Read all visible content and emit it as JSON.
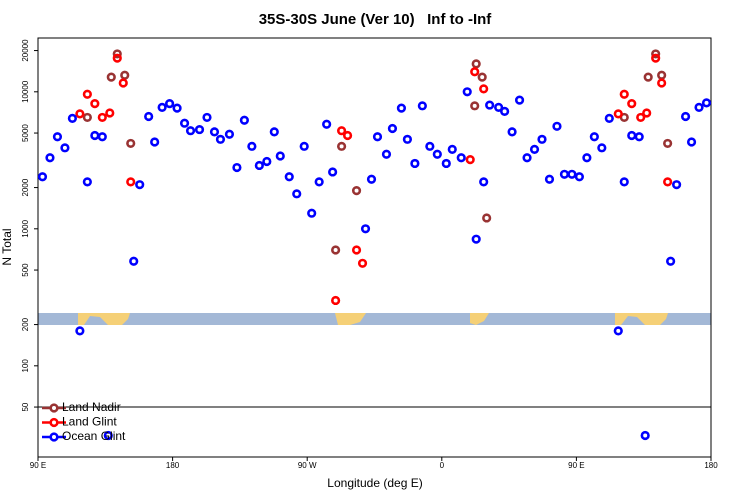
{
  "chart_data": {
    "type": "scatter",
    "title": "35S-30S June (Ver 10)   Inf to -Inf",
    "x_label": "Longitude (deg E)",
    "y_label": "N Total",
    "ylog": true,
    "legend": "bottom-left",
    "reference_line": 50,
    "xlim": [
      90,
      540
    ],
    "xticks": [
      {
        "value": 90,
        "label": "90 E"
      },
      {
        "value": 180,
        "label": "180"
      },
      {
        "value": 270,
        "label": "90 W"
      },
      {
        "value": 360,
        "label": "0"
      },
      {
        "value": 450,
        "label": "90 E"
      },
      {
        "value": 540,
        "label": "180"
      }
    ],
    "ylim": [
      21.6,
      24700
    ],
    "yticks": [
      50,
      100,
      200,
      500,
      1000,
      2000,
      5000,
      10000,
      20000
    ],
    "series": [
      {
        "name": "Land Nadir",
        "color": "#993333",
        "x": [
          123,
          139,
          143,
          148,
          152,
          289,
          293,
          303,
          382,
          383,
          387,
          390,
          482,
          498,
          503,
          507,
          511
        ],
        "values": [
          6500,
          12800,
          18900,
          13200,
          4200,
          700,
          4000,
          1900,
          7900,
          16000,
          12800,
          1200,
          6500,
          12800,
          18900,
          13200,
          4200
        ]
      },
      {
        "name": "Land Glint",
        "color": "#ff0000",
        "x": [
          118,
          123,
          128,
          133,
          138,
          143,
          147,
          152,
          289,
          293,
          297,
          303,
          307,
          379,
          382,
          388,
          478,
          482,
          487,
          493,
          497,
          503,
          507,
          511
        ],
        "values": [
          6900,
          9600,
          8200,
          6500,
          7000,
          17600,
          11600,
          2200,
          300,
          5200,
          4800,
          700,
          560,
          3200,
          14000,
          10500,
          6900,
          9600,
          8200,
          6500,
          7000,
          17600,
          11600,
          2200
        ]
      },
      {
        "name": "Ocean Glint",
        "color": "#0000ff",
        "x": [
          93,
          98,
          103,
          108,
          113,
          118,
          123,
          128,
          133,
          137,
          154,
          158,
          164,
          168,
          173,
          178,
          183,
          188,
          192,
          198,
          203,
          208,
          212,
          218,
          223,
          228,
          233,
          238,
          243,
          248,
          252,
          258,
          263,
          268,
          273,
          278,
          283,
          287,
          309,
          313,
          317,
          323,
          327,
          333,
          337,
          342,
          347,
          352,
          357,
          363,
          367,
          373,
          377,
          383,
          388,
          392,
          398,
          402,
          407,
          412,
          417,
          422,
          427,
          432,
          437,
          442,
          447,
          452,
          457,
          462,
          467,
          472,
          478,
          482,
          487,
          492,
          496,
          513,
          517,
          523,
          527,
          532,
          537
        ],
        "values": [
          2400,
          3300,
          4700,
          3900,
          6400,
          180,
          2200,
          4800,
          4700,
          31,
          580,
          2100,
          6600,
          4300,
          7700,
          8200,
          7600,
          5900,
          5200,
          5300,
          6500,
          5100,
          4500,
          4900,
          2800,
          6200,
          4000,
          2900,
          3100,
          5100,
          3400,
          2400,
          1800,
          4000,
          1300,
          2200,
          5800,
          2600,
          1000,
          2300,
          4700,
          3500,
          5400,
          7600,
          4500,
          3000,
          7900,
          4000,
          3500,
          3000,
          3800,
          3300,
          10000,
          840,
          2200,
          8000,
          7700,
          7200,
          5100,
          8700,
          3300,
          3800,
          4500,
          2300,
          5600,
          2500,
          2500,
          2400,
          3300,
          4700,
          3900,
          6400,
          180,
          2200,
          4800,
          4700,
          31,
          580,
          2100,
          6600,
          4300,
          7700,
          8300
        ]
      }
    ]
  }
}
